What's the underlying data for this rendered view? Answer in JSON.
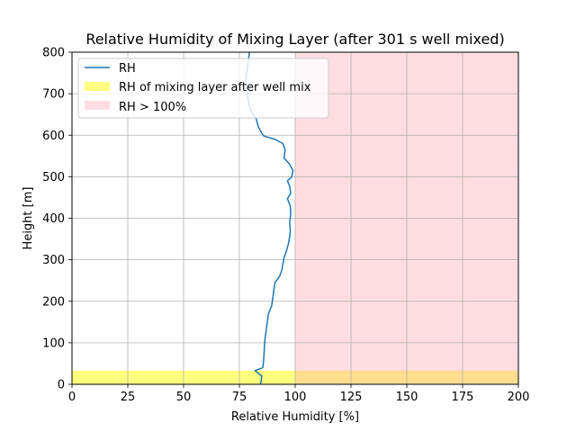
{
  "chart_data": {
    "type": "line",
    "title": "Relative Humidity of Mixing Layer (after 301 s well mixed)",
    "xlabel": "Relative Humidity [%]",
    "ylabel": "Height [m]",
    "xlim": [
      0,
      200
    ],
    "ylim": [
      0,
      800
    ],
    "xticks": [
      0,
      25,
      50,
      75,
      100,
      125,
      150,
      175,
      200
    ],
    "yticks": [
      0,
      100,
      200,
      300,
      400,
      500,
      600,
      700,
      800
    ],
    "grid": true,
    "legend_position": "top-left",
    "series": [
      {
        "name": "RH",
        "type": "line",
        "color": "#1f77b4",
        "points": [
          [
            84.5,
            0
          ],
          [
            84.8,
            10
          ],
          [
            85.0,
            20
          ],
          [
            82.0,
            33
          ],
          [
            85.5,
            40
          ],
          [
            85.8,
            55
          ],
          [
            86.0,
            70
          ],
          [
            86.2,
            90
          ],
          [
            86.5,
            110
          ],
          [
            87.0,
            130
          ],
          [
            87.5,
            150
          ],
          [
            88.0,
            170
          ],
          [
            89.5,
            190
          ],
          [
            90.0,
            210
          ],
          [
            90.5,
            230
          ],
          [
            91.0,
            245
          ],
          [
            93.0,
            260
          ],
          [
            94.0,
            275
          ],
          [
            94.5,
            290
          ],
          [
            95.0,
            305
          ],
          [
            96.0,
            320
          ],
          [
            97.0,
            340
          ],
          [
            97.5,
            355
          ],
          [
            97.8,
            370
          ],
          [
            97.5,
            390
          ],
          [
            98.0,
            410
          ],
          [
            97.8,
            430
          ],
          [
            96.5,
            447
          ],
          [
            98.0,
            460
          ],
          [
            97.5,
            478
          ],
          [
            96.5,
            490
          ],
          [
            98.5,
            500
          ],
          [
            99.0,
            515
          ],
          [
            97.5,
            530
          ],
          [
            95.0,
            545
          ],
          [
            95.5,
            565
          ],
          [
            94.5,
            580
          ],
          [
            91.0,
            590
          ],
          [
            86.0,
            598
          ],
          [
            85.0,
            605
          ],
          [
            83.5,
            620
          ],
          [
            82.5,
            640
          ],
          [
            80.5,
            655
          ],
          [
            79.5,
            670
          ],
          [
            78.5,
            700
          ],
          [
            78.0,
            720
          ],
          [
            78.0,
            740
          ],
          [
            78.5,
            760
          ],
          [
            79.0,
            780
          ],
          [
            79.5,
            800
          ]
        ]
      },
      {
        "name": "RH of mixing layer after well mix",
        "type": "span",
        "color": "#ffff00",
        "alpha": 0.5,
        "xrange": [
          0,
          200
        ],
        "yrange": [
          0,
          33
        ]
      },
      {
        "name": "RH > 100%",
        "type": "span",
        "color": "#ff9fb0",
        "alpha": 0.35,
        "xrange": [
          100,
          200
        ],
        "yrange": [
          0,
          800
        ]
      }
    ]
  }
}
